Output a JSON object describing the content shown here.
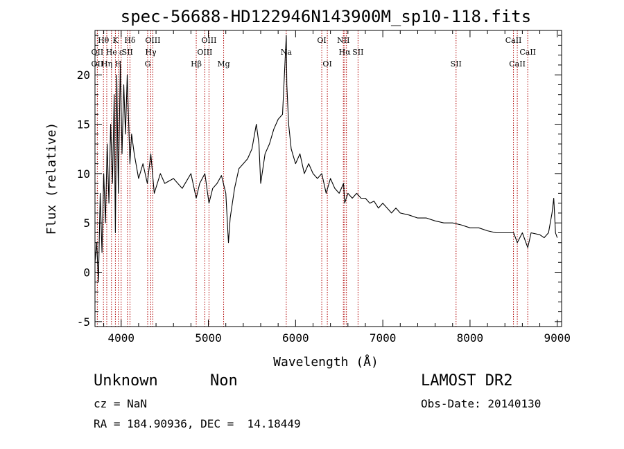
{
  "chart_data": {
    "type": "line",
    "title": "spec-56688-HD122946N143900M_sp10-118.fits",
    "xlabel": "Wavelength (Å)",
    "ylabel": "Flux (relative)",
    "xlim": [
      3700,
      9050
    ],
    "ylim": [
      -5.5,
      24.5
    ],
    "xticks": [
      4000,
      5000,
      6000,
      7000,
      8000,
      9000
    ],
    "yticks": [
      -5,
      0,
      5,
      10,
      15,
      20
    ],
    "grid": false,
    "series": [
      {
        "x": [
          3700,
          3720,
          3740,
          3760,
          3780,
          3800,
          3820,
          3840,
          3860,
          3880,
          3900,
          3920,
          3934,
          3950,
          3968,
          3990,
          4010,
          4030,
          4050,
          4070,
          4101,
          4120,
          4150,
          4200,
          4250,
          4300,
          4340,
          4380,
          4450,
          4500,
          4600,
          4700,
          4800,
          4861,
          4900,
          4960,
          5007,
          5050,
          5100,
          5150,
          5200,
          5230,
          5250,
          5300,
          5350,
          5400,
          5450,
          5500,
          5550,
          5580,
          5600,
          5650,
          5700,
          5750,
          5800,
          5850,
          5893,
          5900,
          5920,
          5950,
          6000,
          6050,
          6100,
          6150,
          6200,
          6250,
          6300,
          6350,
          6400,
          6450,
          6500,
          6550,
          6563,
          6600,
          6650,
          6700,
          6750,
          6800,
          6850,
          6900,
          6950,
          7000,
          7050,
          7100,
          7150,
          7200,
          7300,
          7400,
          7500,
          7600,
          7700,
          7800,
          7900,
          8000,
          8100,
          8200,
          8300,
          8400,
          8500,
          8542,
          8600,
          8662,
          8700,
          8800,
          8850,
          8900,
          8940,
          8960,
          8980,
          9000
        ],
        "y": [
          1,
          3,
          -1,
          8,
          2,
          10,
          5,
          13,
          7,
          15,
          9,
          18,
          4,
          20,
          8,
          21,
          12,
          19,
          14,
          20,
          11,
          14,
          12,
          9.5,
          11,
          9,
          12,
          8,
          10,
          9,
          9.5,
          8.5,
          10,
          7.5,
          9,
          10,
          7,
          8.5,
          9,
          9.8,
          8,
          3,
          5.5,
          8.5,
          10.5,
          11,
          11.5,
          12.5,
          15,
          13,
          9,
          12,
          13,
          14.5,
          15.5,
          16,
          24,
          19,
          15,
          12.5,
          11,
          12,
          10,
          11,
          10,
          9.5,
          10,
          8,
          9.5,
          8.5,
          8,
          9,
          7,
          8,
          7.5,
          8,
          7.5,
          7.5,
          7,
          7.2,
          6.5,
          7,
          6.5,
          6,
          6.5,
          6,
          5.8,
          5.5,
          5.5,
          5.2,
          5,
          5,
          4.8,
          4.5,
          4.5,
          4.2,
          4,
          4,
          4,
          3,
          4,
          2.5,
          4,
          3.8,
          3.5,
          4,
          6,
          7.5,
          4,
          3.5
        ]
      }
    ],
    "lines": [
      {
        "wl": 3727,
        "labels": [
          {
            "text": "OII",
            "row": 1
          },
          {
            "text": "OII",
            "row": 2
          }
        ]
      },
      {
        "wl": 3797,
        "labels": [
          {
            "text": "Hθ",
            "row": 0
          }
        ]
      },
      {
        "wl": 3835,
        "labels": [
          {
            "text": "Hη",
            "row": 2
          }
        ]
      },
      {
        "wl": 3889,
        "labels": [
          {
            "text": "He",
            "row": 1
          }
        ]
      },
      {
        "wl": 3934,
        "labels": [
          {
            "text": "K",
            "row": 0
          }
        ]
      },
      {
        "wl": 3968,
        "labels": [
          {
            "text": "H",
            "row": 2
          }
        ]
      },
      {
        "wl": 4000,
        "labels": [
          {
            "text": "ε",
            "row": 1
          }
        ]
      },
      {
        "wl": 4072,
        "labels": [
          {
            "text": "SII",
            "row": 1
          }
        ]
      },
      {
        "wl": 4101,
        "labels": [
          {
            "text": "Hδ",
            "row": 0
          }
        ]
      },
      {
        "wl": 4304,
        "labels": [
          {
            "text": "G",
            "row": 2
          }
        ]
      },
      {
        "wl": 4340,
        "labels": [
          {
            "text": "Hγ",
            "row": 1
          }
        ]
      },
      {
        "wl": 4363,
        "labels": [
          {
            "text": "OIII",
            "row": 0
          }
        ]
      },
      {
        "wl": 4861,
        "labels": [
          {
            "text": "Hβ",
            "row": 2
          }
        ]
      },
      {
        "wl": 4959,
        "labels": [
          {
            "text": "OIII",
            "row": 1
          }
        ]
      },
      {
        "wl": 5007,
        "labels": [
          {
            "text": "OIII",
            "row": 0
          }
        ]
      },
      {
        "wl": 5175,
        "labels": [
          {
            "text": "Mg",
            "row": 2
          }
        ]
      },
      {
        "wl": 5893,
        "labels": [
          {
            "text": "Na",
            "row": 1
          }
        ]
      },
      {
        "wl": 6300,
        "labels": [
          {
            "text": "OI",
            "row": 0
          }
        ]
      },
      {
        "wl": 6364,
        "labels": [
          {
            "text": "OI",
            "row": 2
          }
        ]
      },
      {
        "wl": 6548,
        "labels": [
          {
            "text": "NII",
            "row": 0
          }
        ]
      },
      {
        "wl": 6563,
        "labels": [
          {
            "text": "Hα",
            "row": 1
          }
        ]
      },
      {
        "wl": 6583,
        "labels": []
      },
      {
        "wl": 6716,
        "labels": [
          {
            "text": "SII",
            "row": 1
          }
        ]
      },
      {
        "wl": 7840,
        "labels": [
          {
            "text": "SII",
            "row": 2
          }
        ]
      },
      {
        "wl": 8498,
        "labels": [
          {
            "text": "CaII",
            "row": 0
          }
        ]
      },
      {
        "wl": 8542,
        "labels": [
          {
            "text": "CaII",
            "row": 2
          }
        ]
      },
      {
        "wl": 8662,
        "labels": [
          {
            "text": "CaII",
            "row": 1
          }
        ]
      }
    ]
  },
  "info": {
    "object_class": "Unknown",
    "object_subclass": "Non",
    "survey": "LAMOST DR2",
    "redshift_text": "cz = NaN",
    "obs_date_text": "Obs-Date: 20140130",
    "coords_text": "RA = 184.90936, DEC =  14.18449"
  }
}
